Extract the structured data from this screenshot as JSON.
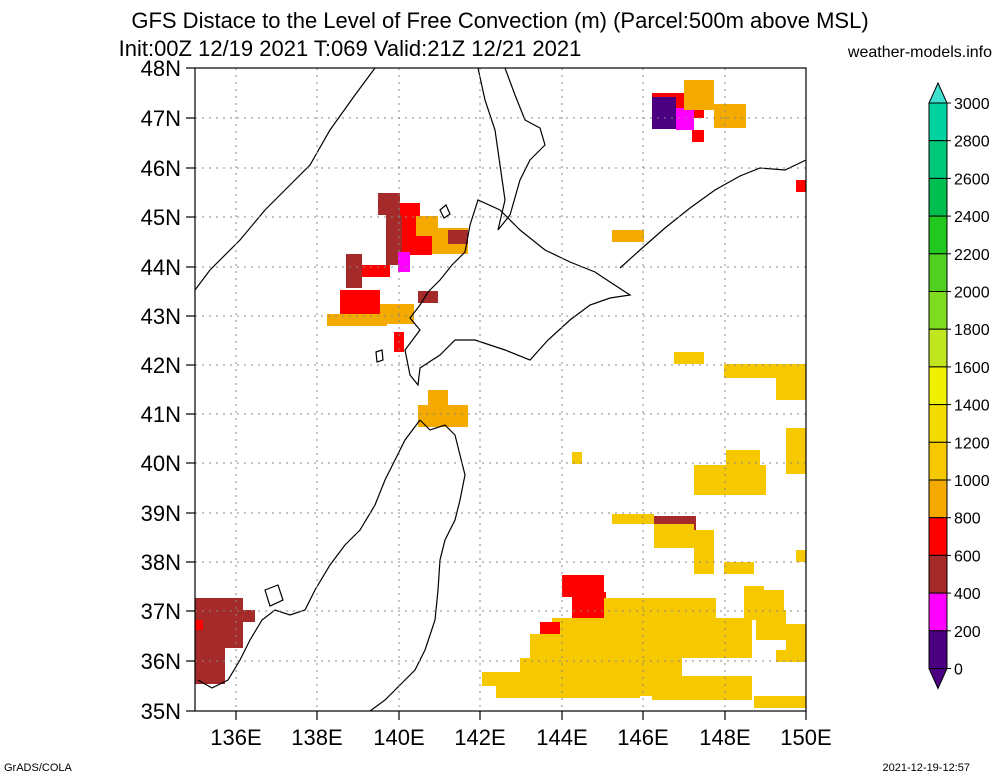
{
  "header": {
    "title_line1": "GFS Distace to the Level of Free Convection (m) (Parcel:500m above MSL)",
    "title_line2": "Init:00Z 12/19 2021 T:069 Valid:21Z 12/21 2021",
    "site": "weather-models.info"
  },
  "axes": {
    "lat_labels": [
      "48N",
      "47N",
      "46N",
      "45N",
      "44N",
      "43N",
      "42N",
      "41N",
      "40N",
      "39N",
      "38N",
      "37N",
      "36N",
      "35N"
    ],
    "lon_labels": [
      "136E",
      "138E",
      "140E",
      "142E",
      "144E",
      "146E",
      "148E",
      "150E"
    ]
  },
  "colorbar": {
    "labels": [
      "3000",
      "2800",
      "2600",
      "2400",
      "2200",
      "2000",
      "1800",
      "1600",
      "1400",
      "1200",
      "1000",
      "800",
      "600",
      "400",
      "200",
      "0"
    ],
    "colors": [
      "#00e6c8",
      "#00d2a0",
      "#00c878",
      "#00be50",
      "#20c820",
      "#50d020",
      "#80dc20",
      "#c0e620",
      "#f0f000",
      "#f5dc00",
      "#f5c800",
      "#f5aa00",
      "#ff0000",
      "#a52a2a",
      "#ff00ff",
      "#4b0082"
    ],
    "top_arrow_color": "#40e0d0",
    "bottom_arrow_color": "#4b0082"
  },
  "footer": {
    "left": "GrADS/COLA",
    "right": "2021-12-19-12:57"
  }
}
